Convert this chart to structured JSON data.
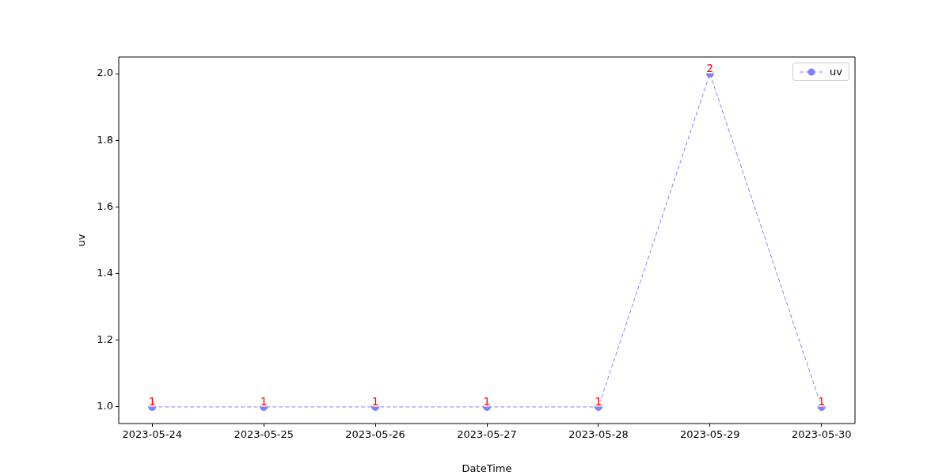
{
  "chart_data": {
    "type": "line",
    "xlabel": "DateTime",
    "ylabel": "uv",
    "categories": [
      "2023-05-24",
      "2023-05-25",
      "2023-05-26",
      "2023-05-27",
      "2023-05-28",
      "2023-05-29",
      "2023-05-30"
    ],
    "series": [
      {
        "name": "uv",
        "color": "#8080ff",
        "values": [
          1,
          1,
          1,
          1,
          1,
          2,
          1
        ]
      }
    ],
    "ylim": [
      0.95,
      2.05
    ],
    "yticks": [
      {
        "value": 1.0,
        "label": "1.0"
      },
      {
        "value": 1.2,
        "label": "1.2"
      },
      {
        "value": 1.4,
        "label": "1.4"
      },
      {
        "value": 1.6,
        "label": "1.6"
      },
      {
        "value": 1.8,
        "label": "1.8"
      },
      {
        "value": 2.0,
        "label": "2.0"
      }
    ],
    "data_labels": true,
    "marker": "circle",
    "line_style": "dashed",
    "legend": "top right",
    "grid": false
  }
}
